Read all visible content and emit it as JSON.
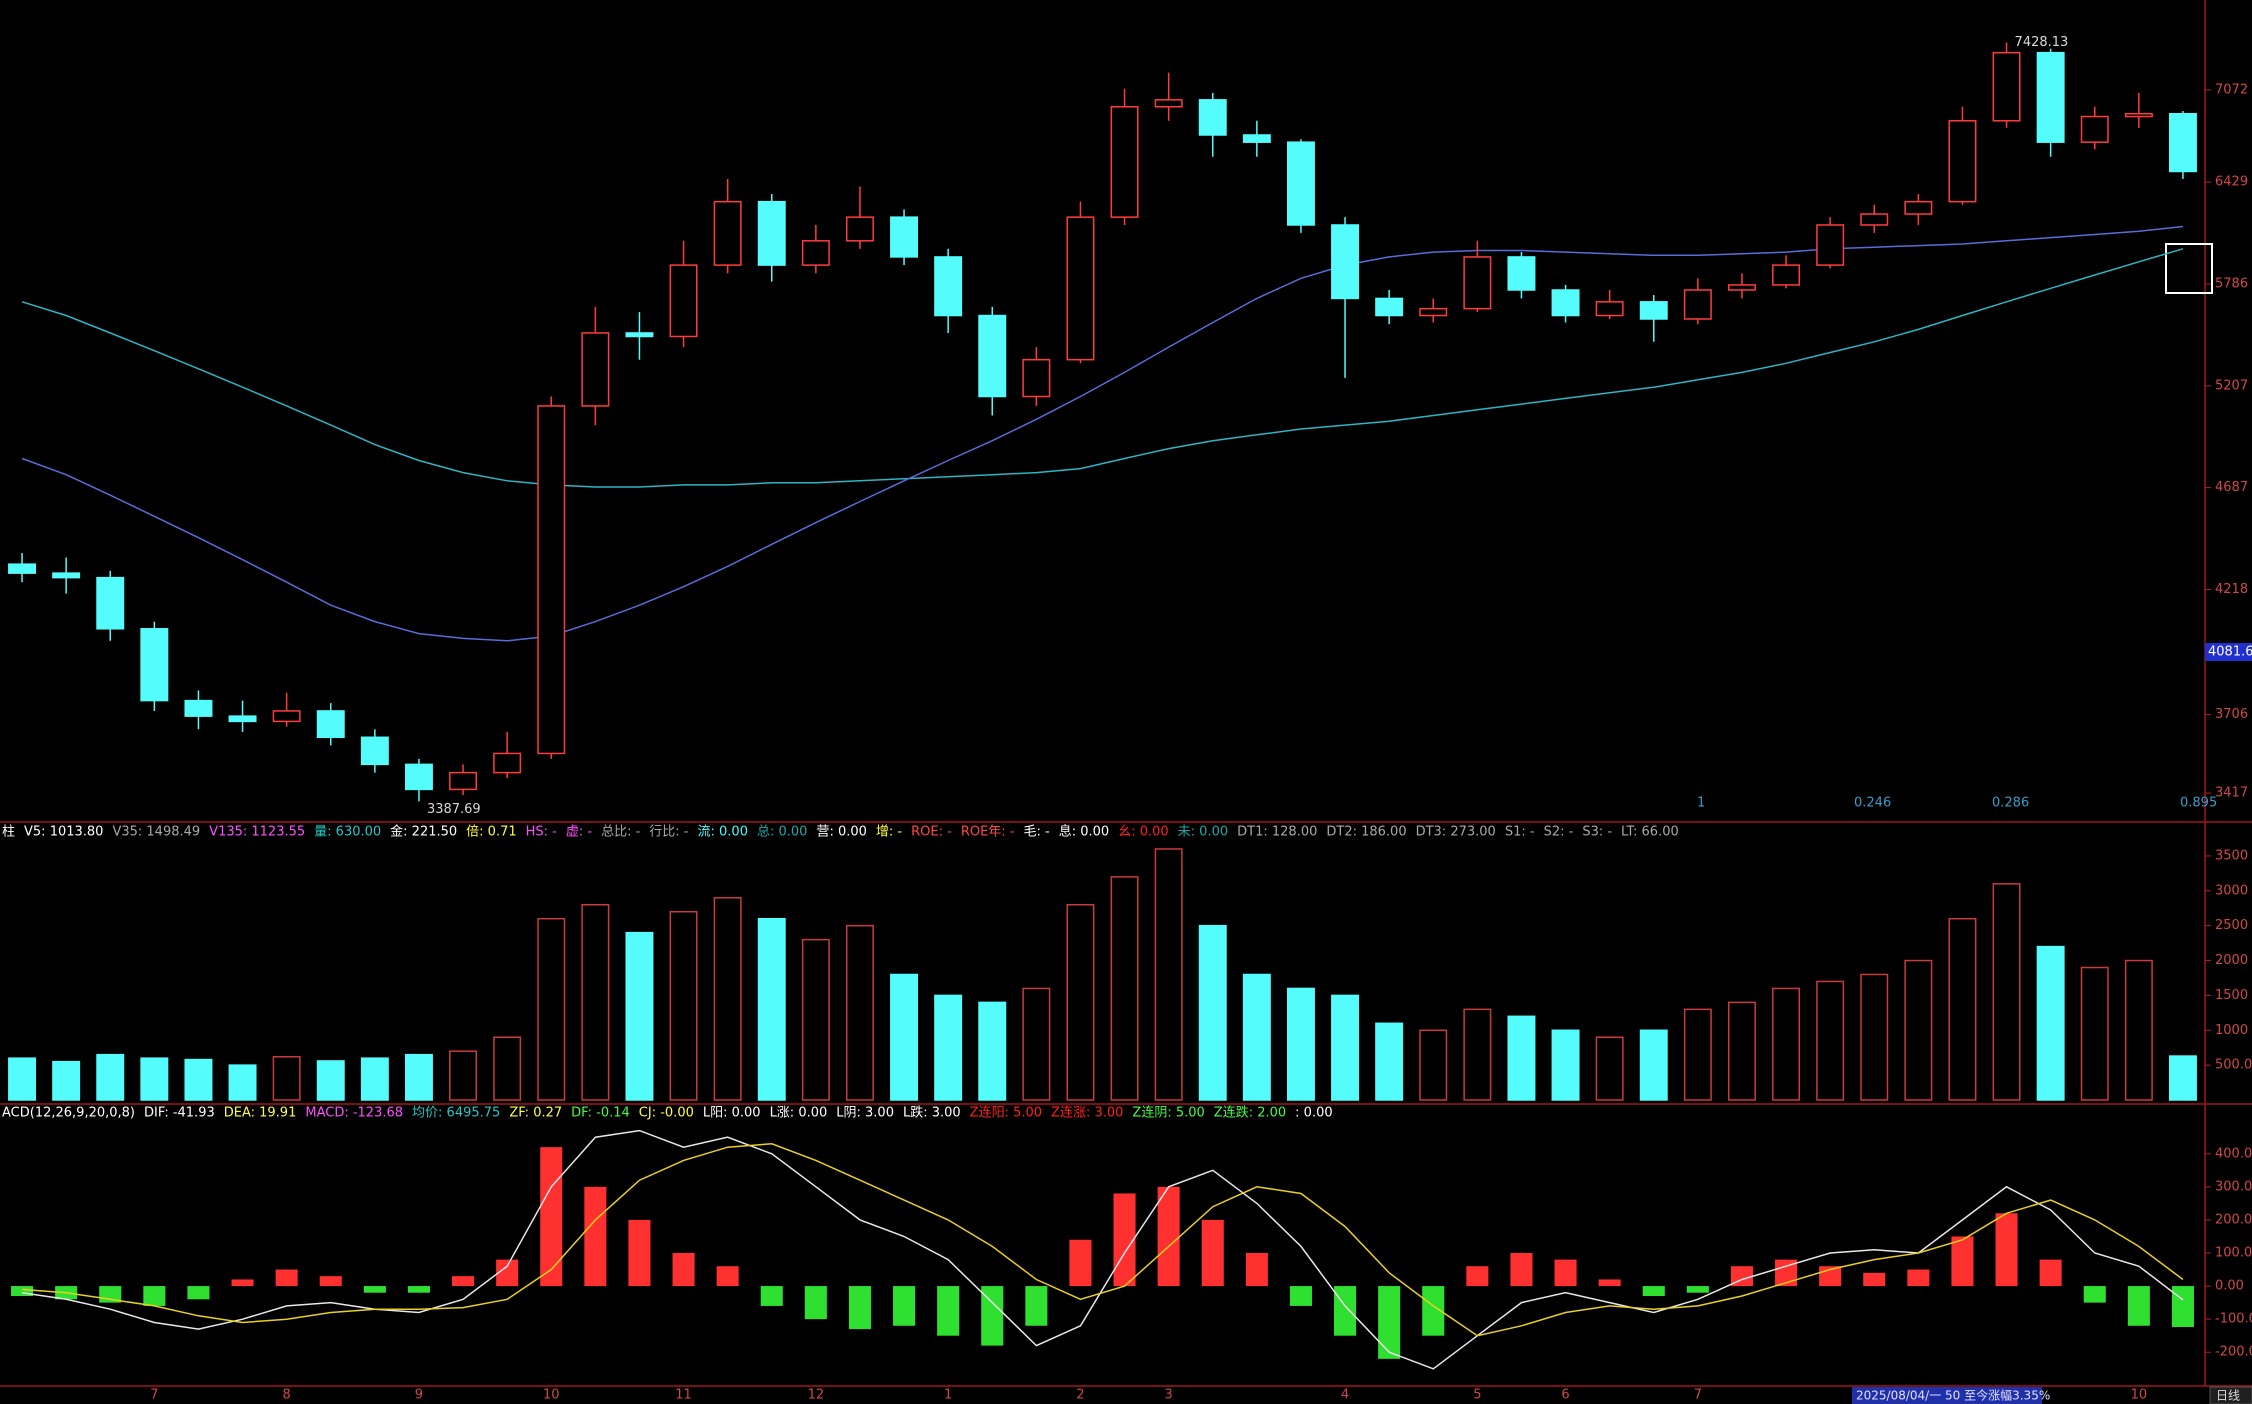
{
  "chart_data": [
    {
      "type": "candlestick",
      "categories": [
        null,
        null,
        null,
        "7",
        null,
        null,
        "8",
        null,
        null,
        "9",
        null,
        null,
        "10",
        null,
        null,
        "11",
        null,
        null,
        "12",
        null,
        null,
        "1",
        null,
        null,
        "2",
        null,
        "3",
        null,
        null,
        null,
        "4",
        null,
        null,
        "5",
        null,
        "6",
        null,
        null,
        "7",
        null,
        null,
        null,
        null,
        null,
        null,
        null,
        null,
        null,
        "10",
        null
      ],
      "open": [
        4330,
        4290,
        4270,
        4050,
        3760,
        3700,
        3680,
        3720,
        3620,
        3520,
        3430,
        3490,
        3560,
        5100,
        5500,
        5480,
        5900,
        6300,
        5900,
        6050,
        6200,
        5950,
        5600,
        5150,
        5350,
        6200,
        6950,
        7000,
        6750,
        6700,
        6150,
        5700,
        5600,
        5640,
        5950,
        5750,
        5600,
        5680,
        5580,
        5750,
        5780,
        5900,
        6150,
        6220,
        6300,
        6850,
        7350,
        6700,
        6880,
        6900
      ],
      "high": [
        4380,
        4360,
        4300,
        4080,
        3800,
        3760,
        3790,
        3750,
        3650,
        3540,
        3520,
        3640,
        5150,
        5650,
        5620,
        6050,
        6450,
        6350,
        6150,
        6400,
        6250,
        6000,
        5650,
        5420,
        6300,
        7080,
        7200,
        7050,
        6850,
        6720,
        6200,
        5750,
        5700,
        6050,
        5980,
        5780,
        5750,
        5720,
        5820,
        5850,
        5960,
        6200,
        6280,
        6350,
        6950,
        7428.13,
        7380,
        6950,
        7050,
        6920
      ],
      "low": [
        4250,
        4200,
        4000,
        3720,
        3650,
        3640,
        3660,
        3590,
        3490,
        3387.69,
        3410,
        3470,
        3540,
        5000,
        5350,
        5420,
        5850,
        5800,
        5850,
        6000,
        5900,
        5500,
        5050,
        5100,
        5330,
        6150,
        6850,
        6600,
        6600,
        6100,
        5250,
        5550,
        5560,
        5620,
        5700,
        5560,
        5580,
        5450,
        5550,
        5700,
        5760,
        5880,
        6100,
        6150,
        6280,
        6800,
        6600,
        6650,
        6800,
        6450
      ],
      "close": [
        4290,
        4270,
        4050,
        3760,
        3700,
        3680,
        3720,
        3620,
        3520,
        3430,
        3490,
        3560,
        5100,
        5500,
        5480,
        5900,
        6300,
        5900,
        6050,
        6200,
        5950,
        5600,
        5150,
        5350,
        6200,
        6950,
        7000,
        6750,
        6700,
        6150,
        5700,
        5600,
        5640,
        5950,
        5750,
        5600,
        5680,
        5580,
        5750,
        5780,
        5900,
        6150,
        6220,
        6300,
        6850,
        7350,
        6700,
        6880,
        6900,
        6500
      ],
      "up_color": "#ff3c3c",
      "down_color": "#54fcfc",
      "series": [
        {
          "color": "#2fb4c4",
          "values": [
            5680,
            5600,
            5500,
            5400,
            5300,
            5200,
            5100,
            5000,
            4900,
            4820,
            4760,
            4720,
            4700,
            4690,
            4690,
            4700,
            4700,
            4710,
            4710,
            4720,
            4730,
            4740,
            4750,
            4760,
            4780,
            4830,
            4880,
            4920,
            4950,
            4980,
            5000,
            5020,
            5050,
            5080,
            5110,
            5140,
            5170,
            5200,
            5240,
            5280,
            5330,
            5390,
            5450,
            5520,
            5600,
            5680,
            5760,
            5840,
            5920,
            6000
          ]
        },
        {
          "color": "#5a6cd8",
          "values": [
            4830,
            4750,
            4650,
            4550,
            4450,
            4350,
            4250,
            4150,
            4080,
            4030,
            4010,
            4000,
            4020,
            4080,
            4150,
            4230,
            4320,
            4420,
            4520,
            4620,
            4720,
            4820,
            4920,
            5030,
            5150,
            5280,
            5420,
            5560,
            5700,
            5820,
            5900,
            5950,
            5980,
            5990,
            5990,
            5980,
            5970,
            5960,
            5960,
            5970,
            5980,
            6000,
            6010,
            6020,
            6030,
            6050,
            6070,
            6090,
            6110,
            6140
          ]
        }
      ],
      "ylim": [
        3330,
        7650
      ],
      "yticks": [
        3417,
        3706,
        4218,
        4687,
        5207,
        5786,
        6429,
        7072
      ],
      "log_scale": true,
      "high_label": "7428.13",
      "low_label": "3387.69",
      "cursor_label": "4081.6",
      "footer_marks": [
        "1",
        "0.246",
        "0.286",
        "0.895"
      ]
    },
    {
      "type": "volume",
      "legend": [
        {
          "text": "柱",
          "color": "#ffffff"
        },
        {
          "text": "V5: 1013.80",
          "color": "#ffffff"
        },
        {
          "text": "V35: 1498.49",
          "color": "#a8a8a8"
        },
        {
          "text": "V135: 1123.55",
          "color": "#ff50ff"
        },
        {
          "text": "量: 630.00",
          "color": "#20c8c8"
        },
        {
          "text": "金: 221.50",
          "color": "#ffffff"
        },
        {
          "text": "倍: 0.71",
          "color": "#ffff40"
        },
        {
          "text": "HS: -",
          "color": "#ff50ff"
        },
        {
          "text": "虚: -",
          "color": "#ff50ff"
        },
        {
          "text": "总比: -",
          "color": "#a8a8a8"
        },
        {
          "text": "行比: -",
          "color": "#a8a8a8"
        },
        {
          "text": "流: 0.00",
          "color": "#40ffff"
        },
        {
          "text": "总: 0.00",
          "color": "#20a8a8"
        },
        {
          "text": "营: 0.00",
          "color": "#ffffff"
        },
        {
          "text": "增: -",
          "color": "#ffff40"
        },
        {
          "text": "ROE: -",
          "color": "#ff4848"
        },
        {
          "text": "ROE年: -",
          "color": "#ff4848"
        },
        {
          "text": "毛: -",
          "color": "#ffffff"
        },
        {
          "text": "息: 0.00",
          "color": "#ffffff"
        },
        {
          "text": "幺: 0.00",
          "color": "#ff2020"
        },
        {
          "text": "未: 0.00",
          "color": "#20a8a8"
        },
        {
          "text": "DT1: 128.00",
          "color": "#a8a8a8"
        },
        {
          "text": "DT2: 186.00",
          "color": "#a8a8a8"
        },
        {
          "text": "DT3: 273.00",
          "color": "#a8a8a8"
        },
        {
          "text": "S1: -",
          "color": "#a8a8a8"
        },
        {
          "text": "S2: -",
          "color": "#a8a8a8"
        },
        {
          "text": "S3: -",
          "color": "#a8a8a8"
        },
        {
          "text": "LT: 66.00",
          "color": "#a8a8a8"
        }
      ],
      "values": [
        600,
        550,
        650,
        600,
        580,
        500,
        620,
        560,
        600,
        650,
        700,
        900,
        2600,
        2800,
        2400,
        2700,
        2900,
        2600,
        2300,
        2500,
        1800,
        1500,
        1400,
        1600,
        2800,
        3200,
        3600,
        2500,
        1800,
        1600,
        1500,
        1100,
        1000,
        1300,
        1200,
        1000,
        900,
        1000,
        1300,
        1400,
        1600,
        1700,
        1800,
        2000,
        2600,
        3100,
        2200,
        1900,
        2000,
        630
      ],
      "up_color": "#c83c3c",
      "down_color": "#54fcfc",
      "ylim": [
        0,
        3700
      ],
      "yticks": [
        {
          "value": 500,
          "label": "500.00"
        },
        1000,
        1500,
        2000,
        2500,
        3000,
        3500
      ]
    },
    {
      "type": "macd",
      "legend": [
        {
          "text": "ACD(12,26,9,20,0,8)",
          "color": "#ffffff"
        },
        {
          "text": "DIF: -41.93",
          "color": "#ffffff"
        },
        {
          "text": "DEA: 19.91",
          "color": "#ffff40"
        },
        {
          "text": "MACD: -123.68",
          "color": "#ff50ff"
        },
        {
          "text": "均价: 6495.75",
          "color": "#20c8c8"
        },
        {
          "text": "ZF: 0.27",
          "color": "#ffff40"
        },
        {
          "text": "DF: -0.14",
          "color": "#40ff40"
        },
        {
          "text": "CJ: -0.00",
          "color": "#ffff40"
        },
        {
          "text": "L阳: 0.00",
          "color": "#ffffff"
        },
        {
          "text": "L涨: 0.00",
          "color": "#ffffff"
        },
        {
          "text": "L阴: 3.00",
          "color": "#ffffff"
        },
        {
          "text": "L跌: 3.00",
          "color": "#ffffff"
        },
        {
          "text": "Z连阳: 5.00",
          "color": "#ff2020"
        },
        {
          "text": "Z连涨: 3.00",
          "color": "#ff2020"
        },
        {
          "text": "Z连阴: 5.00",
          "color": "#40ff40"
        },
        {
          "text": "Z连跌: 2.00",
          "color": "#40ff40"
        },
        {
          "text": ": 0.00",
          "color": "#ffffff"
        }
      ],
      "values": [
        -30,
        -40,
        -50,
        -60,
        -40,
        20,
        50,
        30,
        -20,
        -20,
        30,
        80,
        420,
        300,
        200,
        100,
        60,
        -60,
        -100,
        -130,
        -120,
        -150,
        -180,
        -120,
        140,
        280,
        300,
        200,
        100,
        -60,
        -150,
        -220,
        -150,
        60,
        100,
        80,
        20,
        -30,
        -20,
        60,
        80,
        60,
        40,
        50,
        150,
        220,
        80,
        -50,
        -120,
        -123.68
      ],
      "pos_color": "#ff3030",
      "neg_color": "#30e030",
      "series": [
        {
          "color": "#e8e8e8",
          "values": [
            -20,
            -40,
            -70,
            -110,
            -130,
            -100,
            -60,
            -50,
            -70,
            -80,
            -40,
            60,
            300,
            450,
            470,
            420,
            450,
            400,
            300,
            200,
            150,
            80,
            -50,
            -180,
            -120,
            100,
            300,
            350,
            250,
            120,
            -60,
            -200,
            -250,
            -150,
            -50,
            -20,
            -50,
            -80,
            -40,
            20,
            60,
            100,
            110,
            100,
            200,
            300,
            230,
            100,
            60,
            -41.93
          ]
        },
        {
          "color": "#e8d020",
          "values": [
            -10,
            -20,
            -40,
            -60,
            -90,
            -110,
            -100,
            -80,
            -70,
            -70,
            -65,
            -40,
            50,
            200,
            320,
            380,
            420,
            430,
            380,
            320,
            260,
            200,
            120,
            20,
            -40,
            0,
            120,
            240,
            300,
            280,
            180,
            40,
            -60,
            -150,
            -120,
            -80,
            -60,
            -70,
            -60,
            -30,
            10,
            50,
            80,
            100,
            140,
            220,
            260,
            200,
            120,
            19.91
          ]
        }
      ],
      "ylim": [
        -290,
        490
      ],
      "yticks": [
        {
          "value": -200,
          "label": "-200.00"
        },
        {
          "value": -100,
          "label": "-100.00"
        },
        {
          "value": 0,
          "label": "0.00"
        },
        {
          "value": 100,
          "label": "100.00"
        },
        {
          "value": 200,
          "label": "200.00"
        },
        {
          "value": 300,
          "label": "300.00"
        },
        {
          "value": 400,
          "label": "400.00"
        }
      ]
    }
  ],
  "status_bar": {
    "range": "2025/08/04/一 50 至今涨幅3.35%",
    "period": "日线"
  }
}
